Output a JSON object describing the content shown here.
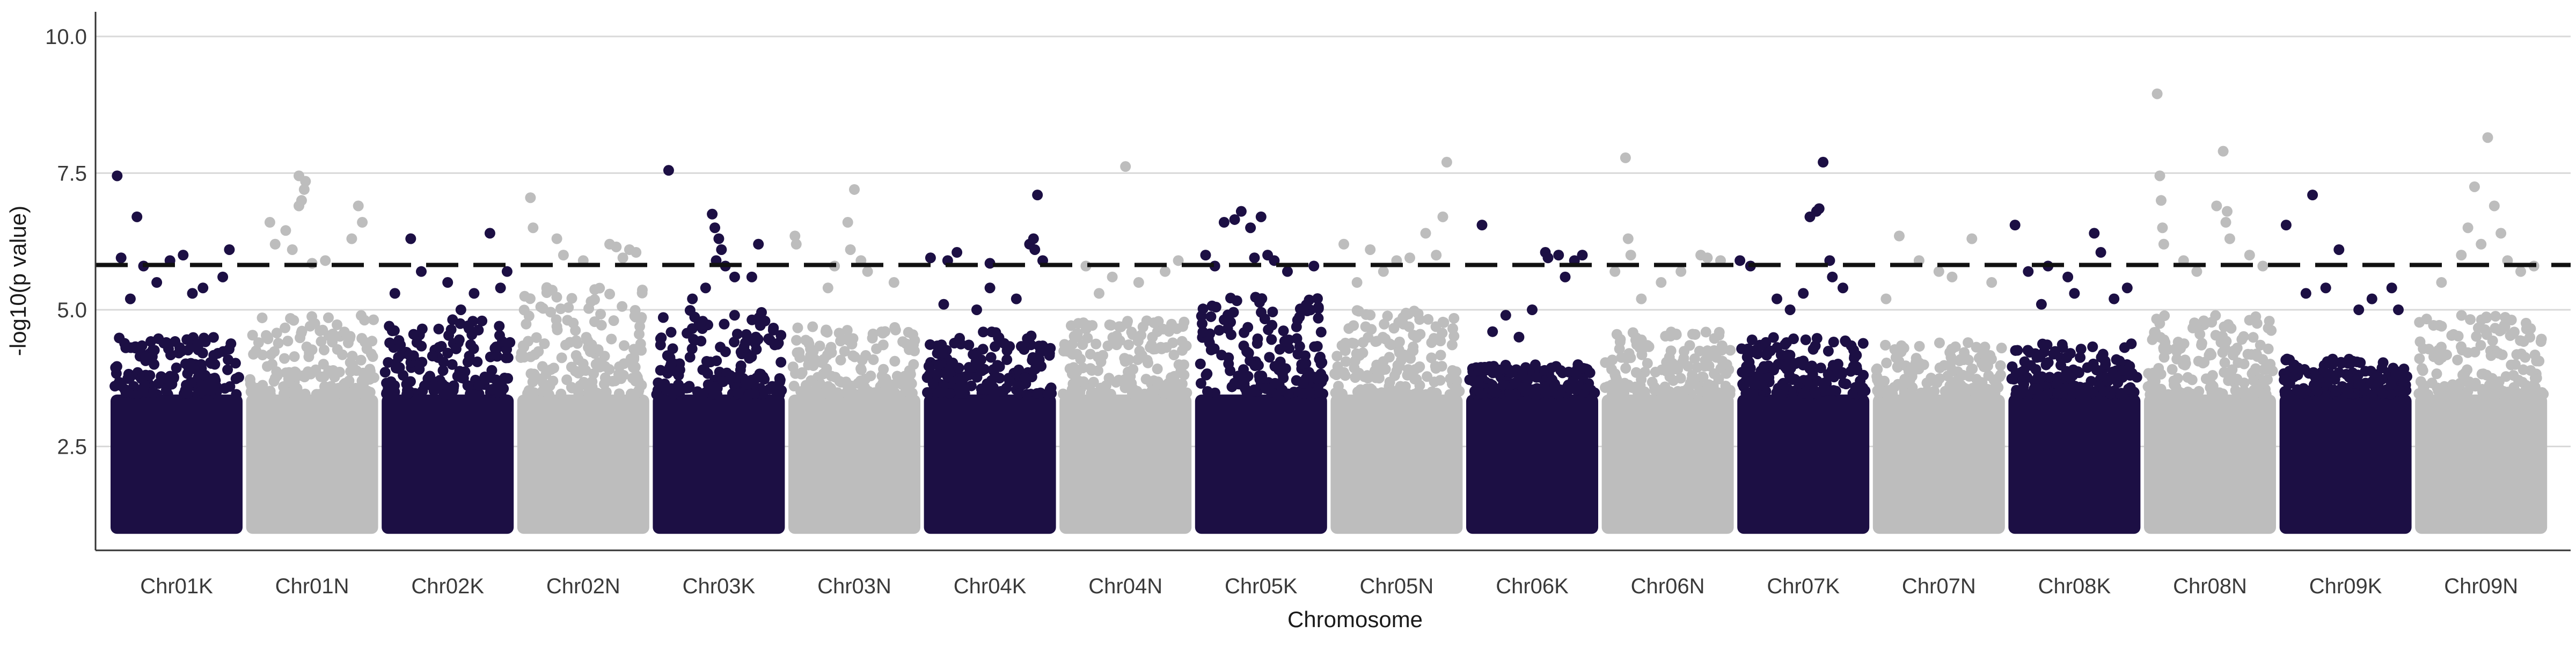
{
  "chart_data": {
    "type": "scatter",
    "subtype": "manhattan",
    "title": "",
    "xlabel": "Chromosome",
    "ylabel": "-log10(p value)",
    "ylim": [
      0.6,
      10.45
    ],
    "yticks": [
      2.5,
      5.0,
      7.5,
      10.0
    ],
    "ytick_labels": [
      "2.5",
      "5.0",
      "7.5",
      "10.0"
    ],
    "grid": "horizontal major",
    "threshold": 5.82,
    "colors": {
      "dark": "#1c0f44",
      "light": "#bdbdbd",
      "threshold": "#111111",
      "grid": "#d9d9d9",
      "axis": "#333333"
    },
    "categories": [
      "Chr01K",
      "Chr01N",
      "Chr02K",
      "Chr02N",
      "Chr03K",
      "Chr03N",
      "Chr04K",
      "Chr04N",
      "Chr05K",
      "Chr05N",
      "Chr06K",
      "Chr06N",
      "Chr07K",
      "Chr07N",
      "Chr08K",
      "Chr08N",
      "Chr09K",
      "Chr09N"
    ],
    "series": [
      {
        "chromosome": "Chr01K",
        "color": "dark",
        "base_max": 4.5,
        "points": [
          [
            0.05,
            7.45
          ],
          [
            0.2,
            6.7
          ],
          [
            0.08,
            5.95
          ],
          [
            0.25,
            5.8
          ],
          [
            0.35,
            5.5
          ],
          [
            0.45,
            5.9
          ],
          [
            0.55,
            6.0
          ],
          [
            0.7,
            5.4
          ],
          [
            0.85,
            5.6
          ],
          [
            0.9,
            6.1
          ],
          [
            0.15,
            5.2
          ],
          [
            0.62,
            5.3
          ]
        ]
      },
      {
        "chromosome": "Chr01N",
        "color": "light",
        "base_max": 4.9,
        "points": [
          [
            0.18,
            6.6
          ],
          [
            0.22,
            6.2
          ],
          [
            0.3,
            6.45
          ],
          [
            0.35,
            6.1
          ],
          [
            0.4,
            6.9
          ],
          [
            0.42,
            7.0
          ],
          [
            0.44,
            7.2
          ],
          [
            0.4,
            7.45
          ],
          [
            0.45,
            7.35
          ],
          [
            0.6,
            5.9
          ],
          [
            0.85,
            6.9
          ],
          [
            0.88,
            6.6
          ],
          [
            0.8,
            6.3
          ],
          [
            0.5,
            5.85
          ]
        ]
      },
      {
        "chromosome": "Chr02K",
        "color": "dark",
        "base_max": 4.9,
        "points": [
          [
            0.22,
            6.3
          ],
          [
            0.3,
            5.7
          ],
          [
            0.5,
            5.5
          ],
          [
            0.7,
            5.3
          ],
          [
            0.82,
            6.4
          ],
          [
            0.9,
            5.4
          ],
          [
            0.95,
            5.7
          ],
          [
            0.1,
            5.3
          ],
          [
            0.6,
            5.0
          ]
        ]
      },
      {
        "chromosome": "Chr02N",
        "color": "light",
        "base_max": 5.5,
        "points": [
          [
            0.1,
            7.05
          ],
          [
            0.12,
            6.5
          ],
          [
            0.3,
            6.3
          ],
          [
            0.35,
            6.0
          ],
          [
            0.5,
            5.9
          ],
          [
            0.7,
            6.2
          ],
          [
            0.75,
            6.15
          ],
          [
            0.85,
            6.1
          ],
          [
            0.9,
            6.05
          ],
          [
            0.8,
            5.95
          ]
        ]
      },
      {
        "chromosome": "Chr03K",
        "color": "dark",
        "base_max": 5.0,
        "points": [
          [
            0.12,
            7.55
          ],
          [
            0.45,
            6.75
          ],
          [
            0.47,
            6.5
          ],
          [
            0.5,
            6.3
          ],
          [
            0.52,
            6.1
          ],
          [
            0.48,
            5.9
          ],
          [
            0.55,
            5.8
          ],
          [
            0.8,
            6.2
          ],
          [
            0.75,
            5.6
          ],
          [
            0.3,
            5.2
          ],
          [
            0.62,
            5.6
          ],
          [
            0.4,
            5.4
          ]
        ]
      },
      {
        "chromosome": "Chr03N",
        "color": "light",
        "base_max": 4.7,
        "points": [
          [
            0.05,
            6.35
          ],
          [
            0.06,
            6.2
          ],
          [
            0.35,
            5.8
          ],
          [
            0.45,
            6.6
          ],
          [
            0.47,
            6.1
          ],
          [
            0.5,
            7.2
          ],
          [
            0.55,
            5.9
          ],
          [
            0.6,
            5.7
          ],
          [
            0.3,
            5.4
          ],
          [
            0.8,
            5.5
          ]
        ]
      },
      {
        "chromosome": "Chr04K",
        "color": "dark",
        "base_max": 4.6,
        "points": [
          [
            0.05,
            5.95
          ],
          [
            0.25,
            6.05
          ],
          [
            0.18,
            5.9
          ],
          [
            0.5,
            5.85
          ],
          [
            0.5,
            5.4
          ],
          [
            0.7,
            5.2
          ],
          [
            0.8,
            6.2
          ],
          [
            0.83,
            6.3
          ],
          [
            0.86,
            7.1
          ],
          [
            0.84,
            6.1
          ],
          [
            0.9,
            5.9
          ],
          [
            0.15,
            5.1
          ],
          [
            0.4,
            5.0
          ]
        ]
      },
      {
        "chromosome": "Chr04N",
        "color": "light",
        "base_max": 4.8,
        "points": [
          [
            0.5,
            7.62
          ],
          [
            0.2,
            5.8
          ],
          [
            0.4,
            5.6
          ],
          [
            0.6,
            5.5
          ],
          [
            0.8,
            5.7
          ],
          [
            0.9,
            5.9
          ],
          [
            0.3,
            5.3
          ]
        ]
      },
      {
        "chromosome": "Chr05K",
        "color": "dark",
        "base_max": 5.3,
        "points": [
          [
            0.08,
            6.0
          ],
          [
            0.15,
            5.8
          ],
          [
            0.22,
            6.6
          ],
          [
            0.3,
            6.65
          ],
          [
            0.35,
            6.8
          ],
          [
            0.42,
            6.5
          ],
          [
            0.5,
            6.7
          ],
          [
            0.55,
            6.0
          ],
          [
            0.6,
            5.9
          ],
          [
            0.45,
            5.95
          ],
          [
            0.7,
            5.7
          ],
          [
            0.9,
            5.8
          ]
        ]
      },
      {
        "chromosome": "Chr05N",
        "color": "light",
        "base_max": 5.0,
        "points": [
          [
            0.1,
            6.2
          ],
          [
            0.3,
            6.1
          ],
          [
            0.5,
            5.9
          ],
          [
            0.6,
            5.95
          ],
          [
            0.72,
            6.4
          ],
          [
            0.85,
            6.7
          ],
          [
            0.88,
            7.7
          ],
          [
            0.8,
            6.0
          ],
          [
            0.2,
            5.5
          ],
          [
            0.4,
            5.7
          ]
        ]
      },
      {
        "chromosome": "Chr06K",
        "color": "dark",
        "base_max": 4.0,
        "points": [
          [
            0.12,
            6.55
          ],
          [
            0.6,
            6.05
          ],
          [
            0.62,
            5.95
          ],
          [
            0.7,
            6.0
          ],
          [
            0.82,
            5.9
          ],
          [
            0.88,
            6.0
          ],
          [
            0.75,
            5.6
          ],
          [
            0.3,
            4.9
          ],
          [
            0.5,
            5.0
          ],
          [
            0.2,
            4.6
          ],
          [
            0.4,
            4.5
          ]
        ]
      },
      {
        "chromosome": "Chr06N",
        "color": "light",
        "base_max": 4.6,
        "points": [
          [
            0.18,
            7.78
          ],
          [
            0.2,
            6.3
          ],
          [
            0.22,
            6.0
          ],
          [
            0.1,
            5.7
          ],
          [
            0.45,
            5.5
          ],
          [
            0.6,
            5.7
          ],
          [
            0.75,
            6.0
          ],
          [
            0.8,
            5.95
          ],
          [
            0.9,
            5.9
          ],
          [
            0.3,
            5.2
          ]
        ]
      },
      {
        "chromosome": "Chr07K",
        "color": "dark",
        "base_max": 4.5,
        "points": [
          [
            0.02,
            5.9
          ],
          [
            0.1,
            5.8
          ],
          [
            0.3,
            5.2
          ],
          [
            0.5,
            5.3
          ],
          [
            0.55,
            6.7
          ],
          [
            0.6,
            6.8
          ],
          [
            0.65,
            7.7
          ],
          [
            0.62,
            6.85
          ],
          [
            0.7,
            5.9
          ],
          [
            0.72,
            5.6
          ],
          [
            0.4,
            5.0
          ],
          [
            0.8,
            5.4
          ]
        ]
      },
      {
        "chromosome": "Chr07N",
        "color": "light",
        "base_max": 4.4,
        "points": [
          [
            0.2,
            6.35
          ],
          [
            0.35,
            5.9
          ],
          [
            0.5,
            5.7
          ],
          [
            0.6,
            5.6
          ],
          [
            0.75,
            6.3
          ],
          [
            0.9,
            5.5
          ],
          [
            0.1,
            5.2
          ]
        ]
      },
      {
        "chromosome": "Chr08K",
        "color": "dark",
        "base_max": 4.4,
        "points": [
          [
            0.05,
            6.55
          ],
          [
            0.15,
            5.7
          ],
          [
            0.3,
            5.8
          ],
          [
            0.45,
            5.6
          ],
          [
            0.5,
            5.3
          ],
          [
            0.65,
            6.4
          ],
          [
            0.7,
            6.05
          ],
          [
            0.8,
            5.2
          ],
          [
            0.9,
            5.4
          ],
          [
            0.25,
            5.1
          ]
        ]
      },
      {
        "chromosome": "Chr08N",
        "color": "light",
        "base_max": 4.9,
        "points": [
          [
            0.1,
            8.95
          ],
          [
            0.12,
            7.45
          ],
          [
            0.13,
            7.0
          ],
          [
            0.14,
            6.5
          ],
          [
            0.15,
            6.2
          ],
          [
            0.3,
            5.9
          ],
          [
            0.55,
            6.9
          ],
          [
            0.6,
            7.9
          ],
          [
            0.62,
            6.6
          ],
          [
            0.65,
            6.3
          ],
          [
            0.4,
            5.7
          ],
          [
            0.8,
            6.0
          ],
          [
            0.9,
            5.8
          ],
          [
            0.63,
            6.8
          ]
        ]
      },
      {
        "chromosome": "Chr09K",
        "color": "dark",
        "base_max": 4.1,
        "points": [
          [
            0.05,
            6.55
          ],
          [
            0.25,
            7.1
          ],
          [
            0.45,
            6.1
          ],
          [
            0.35,
            5.4
          ],
          [
            0.2,
            5.3
          ],
          [
            0.6,
            5.0
          ],
          [
            0.7,
            5.2
          ],
          [
            0.85,
            5.4
          ],
          [
            0.9,
            5.0
          ]
        ]
      },
      {
        "chromosome": "Chr09N",
        "color": "light",
        "base_max": 4.9,
        "points": [
          [
            0.35,
            6.0
          ],
          [
            0.4,
            6.5
          ],
          [
            0.45,
            7.25
          ],
          [
            0.5,
            6.2
          ],
          [
            0.55,
            8.15
          ],
          [
            0.6,
            6.9
          ],
          [
            0.65,
            6.4
          ],
          [
            0.7,
            5.9
          ],
          [
            0.8,
            5.7
          ],
          [
            0.9,
            5.8
          ],
          [
            0.2,
            5.5
          ]
        ]
      }
    ]
  }
}
